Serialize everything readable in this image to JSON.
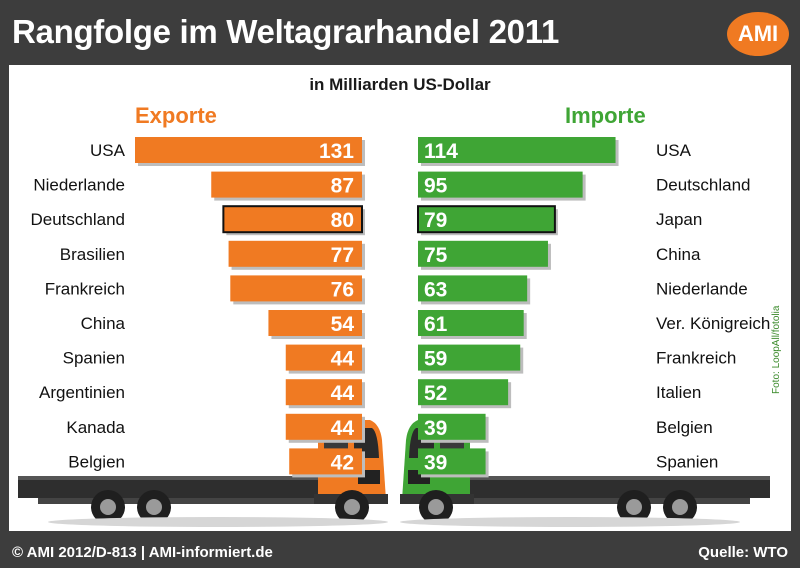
{
  "title": "Rangfolge im Weltagrarhandel 2011",
  "logo": "AMI",
  "unit_label": "in Milliarden US-Dollar",
  "footer_left": "© AMI 2012/D-813 | AMI-informiert.de",
  "footer_right": "Quelle: WTO",
  "photo_credit": "Foto: LoopAll/fotolia",
  "colors": {
    "export": "#f07a22",
    "import": "#3fa535",
    "background": "#3d3d3d"
  },
  "chart_data": [
    {
      "type": "bar",
      "title": "Exporte",
      "orientation": "horizontal",
      "direction": "right-to-left",
      "categories": [
        "USA",
        "Niederlande",
        "Deutschland",
        "Brasilien",
        "Frankreich",
        "China",
        "Spanien",
        "Argentinien",
        "Kanada",
        "Belgien"
      ],
      "values": [
        131,
        87,
        80,
        77,
        76,
        54,
        44,
        44,
        44,
        42
      ],
      "highlight": "Deutschland"
    },
    {
      "type": "bar",
      "title": "Importe",
      "orientation": "horizontal",
      "direction": "left-to-right",
      "categories": [
        "USA",
        "Deutschland",
        "Japan",
        "China",
        "Niederlande",
        "Ver. Königreich",
        "Frankreich",
        "Italien",
        "Belgien",
        "Spanien"
      ],
      "values": [
        114,
        95,
        79,
        75,
        63,
        61,
        59,
        52,
        39,
        39
      ],
      "highlight": "Japan"
    }
  ]
}
